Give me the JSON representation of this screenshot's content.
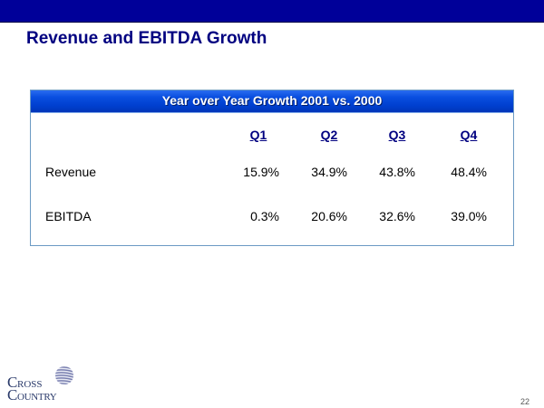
{
  "slide": {
    "title": "Revenue and EBITDA Growth",
    "page_number": "22"
  },
  "table": {
    "header": "Year over Year Growth 2001 vs. 2000",
    "columns": [
      "Q1",
      "Q2",
      "Q3",
      "Q4"
    ],
    "rows": [
      {
        "label": "Revenue",
        "values": [
          "15.9%",
          "34.9%",
          "43.8%",
          "48.4%"
        ]
      },
      {
        "label": "EBITDA",
        "values": [
          "0.3%",
          "20.6%",
          "32.6%",
          "39.0%"
        ]
      }
    ]
  },
  "logo": {
    "text_line1": "CROSS",
    "text_line2": "COUNTRY",
    "icon": "globe-icon"
  },
  "colors": {
    "top_bar": "#000099",
    "title": "#000080",
    "table_header": "#0a4fe0",
    "border": "#6b9ac4"
  }
}
